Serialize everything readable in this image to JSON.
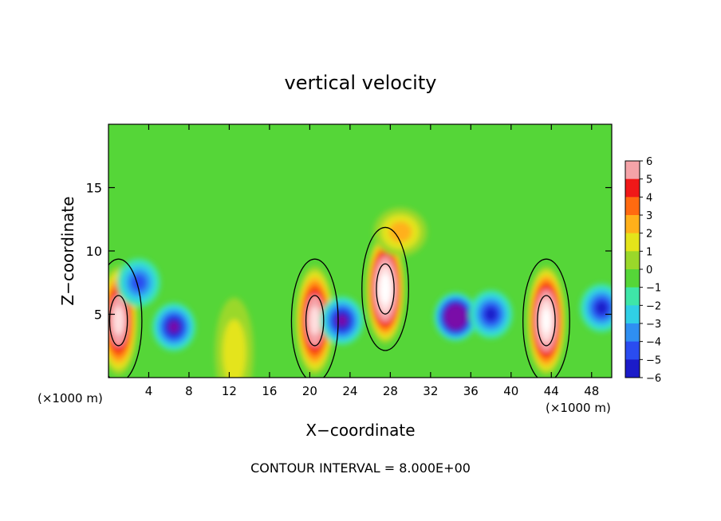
{
  "chart_data": {
    "type": "heatmap",
    "title": "vertical velocity",
    "xlabel": "X−coordinate",
    "ylabel": "Z−coordinate",
    "x_unit_left": "(×1000 m)",
    "x_unit_right": "(×1000 m)",
    "footer": "CONTOUR INTERVAL = 8.000E+00",
    "xlim": [
      0,
      50
    ],
    "ylim": [
      0,
      20
    ],
    "x_ticks": [
      4,
      8,
      12,
      16,
      20,
      24,
      28,
      32,
      36,
      40,
      44,
      48
    ],
    "y_ticks": [
      5,
      10,
      15
    ],
    "colorbar": {
      "min": -6,
      "max": 6,
      "tick_labels": [
        "6",
        "5",
        "4",
        "3",
        "2",
        "1",
        "0",
        "−1",
        "−2",
        "−3",
        "−4",
        "−5",
        "−6"
      ]
    },
    "features": [
      {
        "kind": "updraft",
        "x": 20.5,
        "z": 4.5,
        "peak": 9
      },
      {
        "kind": "updraft",
        "x": 27.5,
        "z": 7.0,
        "peak": 12
      },
      {
        "kind": "updraft",
        "x": 43.5,
        "z": 4.5,
        "peak": 11
      },
      {
        "kind": "updraft",
        "x": 12.5,
        "z": 2.0,
        "peak": 2
      },
      {
        "kind": "updraft",
        "x": 1.0,
        "z": 4.5,
        "peak": 9
      },
      {
        "kind": "upper_positive",
        "x": 29.0,
        "z": 11.5,
        "peak": 3
      },
      {
        "kind": "downdraft",
        "x": 34.5,
        "z": 4.8,
        "peak": -10
      },
      {
        "kind": "downdraft",
        "x": 6.5,
        "z": 4.0,
        "peak": -6
      },
      {
        "kind": "downdraft",
        "x": 3.0,
        "z": 7.5,
        "peak": -4
      },
      {
        "kind": "downdraft",
        "x": 23.2,
        "z": 4.5,
        "peak": -6
      },
      {
        "kind": "downdraft",
        "x": 38.0,
        "z": 5.0,
        "peak": -5
      },
      {
        "kind": "downdraft",
        "x": 49.0,
        "z": 5.5,
        "peak": -5
      }
    ]
  }
}
